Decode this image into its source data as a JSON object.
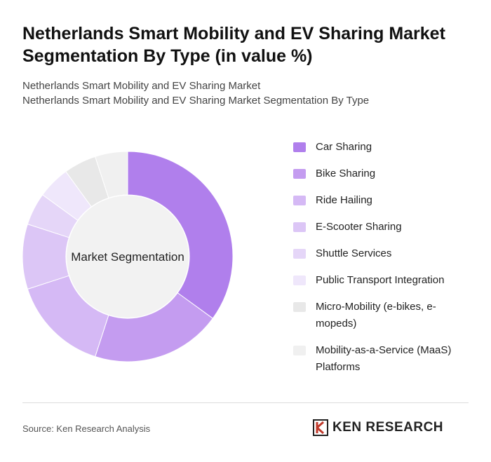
{
  "chart_data": {
    "type": "donut",
    "title": "Netherlands Smart Mobility and EV Sharing Market Segmentation By Type (in value %)",
    "subtitle": [
      "Netherlands Smart Mobility and EV Sharing Market",
      "Netherlands Smart Mobility and EV Sharing Market Segmentation By Type"
    ],
    "center_label": "Market Segmentation",
    "categories": [
      "Car Sharing",
      "Bike Sharing",
      "Ride Hailing",
      "E-Scooter Sharing",
      "Shuttle Services",
      "Public Transport Integration",
      "Micro-Mobility (e-bikes, e-mopeds)",
      "Mobility-as-a-Service (MaaS) Platforms"
    ],
    "values": [
      35,
      20,
      15,
      10,
      5,
      5,
      5,
      5
    ],
    "colors": [
      "#b07fec",
      "#c49cf0",
      "#d5b9f5",
      "#dcc6f6",
      "#e5d6f8",
      "#efe7fb",
      "#e8e8e8",
      "#f0f0f0"
    ],
    "source": "Source: Ken Research Analysis",
    "brand": "KEN RESEARCH"
  }
}
